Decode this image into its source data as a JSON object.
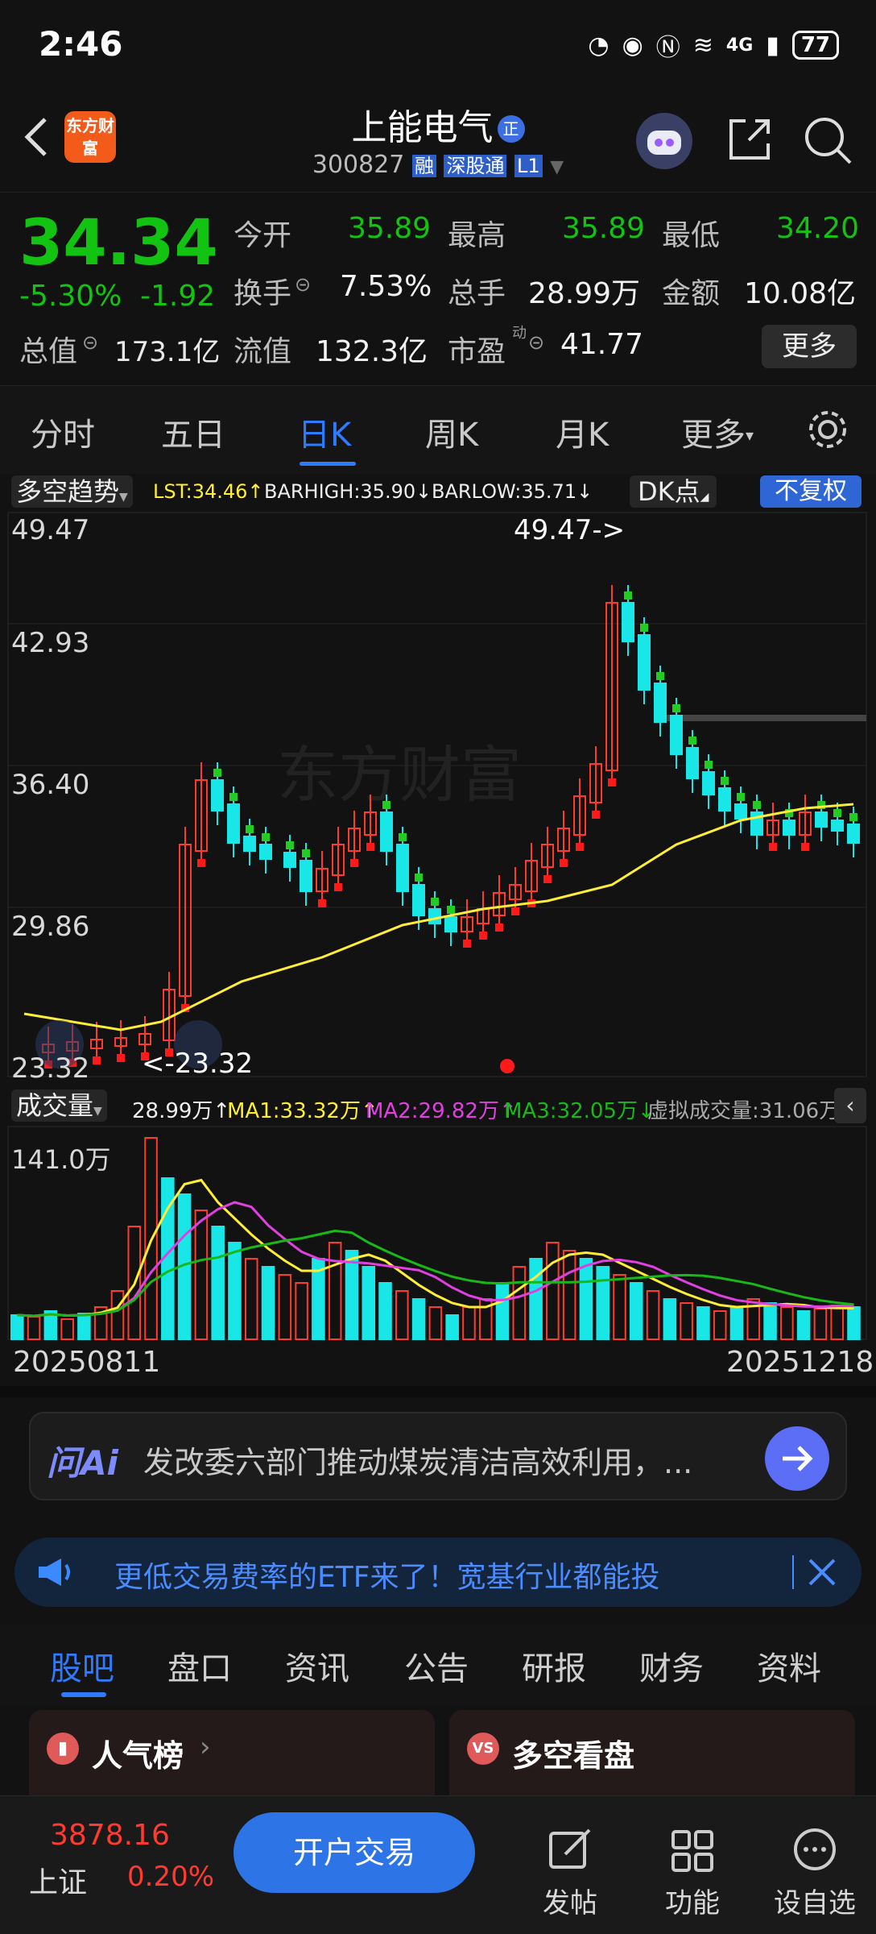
{
  "status_bar": {
    "time": "2:46",
    "network": "4G",
    "battery": "77"
  },
  "header": {
    "app_logo": "东方财富",
    "stock_name": "上能电气",
    "stock_code": "300827",
    "badges": [
      "融",
      "深股通",
      "L1"
    ]
  },
  "quote": {
    "price": "34.34",
    "change_pct": "-5.30%",
    "change_abs": "-1.92",
    "open_label": "今开",
    "open": "35.89",
    "high_label": "最高",
    "high": "35.89",
    "low_label": "最低",
    "low": "34.20",
    "turnover_label": "换手",
    "turnover": "7.53%",
    "volume_label": "总手",
    "volume": "28.99万",
    "amount_label": "金额",
    "amount": "10.08亿",
    "mcap_label": "总值",
    "mcap": "173.1亿",
    "float_label": "流值",
    "float_cap": "132.3亿",
    "pe_label": "市盈",
    "pe_sup": "动",
    "pe": "41.77",
    "more_button": "更多"
  },
  "period_tabs": [
    "分时",
    "五日",
    "日K",
    "周K",
    "月K",
    "更多"
  ],
  "active_tab": "日K",
  "kchart": {
    "indicator": "多空趋势",
    "lst": "LST:34.46↑",
    "barhigh": "BARHIGH:35.90↓",
    "barlow": "BARLOW:35.71↓",
    "dk_button": "DK点",
    "adjust_button": "不复权",
    "y_labels": [
      "49.47",
      "42.93",
      "36.40",
      "29.86",
      "23.32"
    ],
    "max_label": "49.47->",
    "min_label": "<-23.32",
    "watermark": "东方财富"
  },
  "volume": {
    "indicator": "成交量",
    "value": "28.99万↑",
    "ma1": "MA1:33.32万↑",
    "ma2": "MA2:29.82万↑",
    "ma3": "MA3:32.05万↓",
    "virtual": "虚拟成交量:31.06万",
    "y_label": "141.0万",
    "date_start": "20250811",
    "date_end": "20251218"
  },
  "ai_bar": {
    "logo": "问Ai",
    "text": "发改委六部门推动煤炭清洁高效利用，..."
  },
  "banner": {
    "text": "更低交易费率的ETF来了！宽基行业都能投"
  },
  "bottom_tabs": [
    "股吧",
    "盘口",
    "资讯",
    "公告",
    "研报",
    "财务",
    "资料"
  ],
  "active_bottom_tab": "股吧",
  "cards": [
    {
      "title": "人气榜"
    },
    {
      "title": "多空看盘"
    }
  ],
  "bottom_nav": {
    "index_value": "3878.16",
    "index_name": "上证",
    "index_change": "0.20%",
    "trade_button": "开户交易",
    "post": "发帖",
    "function": "功能",
    "watchlist": "设自选"
  },
  "colors": {
    "up": "#ff3b30",
    "down": "#19e6e6",
    "accent": "#2f7bff",
    "ma_yellow": "#ffee33",
    "price_green": "#12c312"
  }
}
